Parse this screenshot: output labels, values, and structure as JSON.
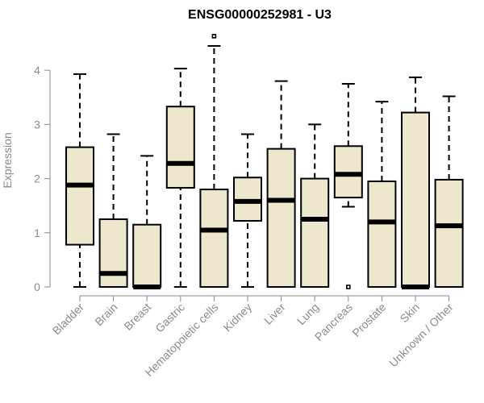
{
  "chart_data": {
    "type": "boxplot",
    "title": "ENSG00000252981 - U3",
    "xlabel": "",
    "ylabel": "Expression",
    "ylim": [
      0,
      4.6
    ],
    "yticks": [
      0,
      1,
      2,
      3,
      4
    ],
    "grid": false,
    "box_color": "#ede7cd",
    "categories": [
      "Bladder",
      "Brain",
      "Breast",
      "Gastric",
      "Hematopoietic cells",
      "Kidney",
      "Liver",
      "Lung",
      "Pancreas",
      "Prostate",
      "Skin",
      "Unknown / Other"
    ],
    "boxes": [
      {
        "min": 0,
        "q1": 0.78,
        "median": 1.88,
        "q3": 2.58,
        "max": 3.93,
        "outliers": []
      },
      {
        "min": 0,
        "q1": 0,
        "median": 0.25,
        "q3": 1.25,
        "max": 2.82,
        "outliers": []
      },
      {
        "min": 0,
        "q1": 0,
        "median": 0,
        "q3": 1.15,
        "max": 2.42,
        "outliers": []
      },
      {
        "min": 0,
        "q1": 1.83,
        "median": 2.28,
        "q3": 3.33,
        "max": 4.03,
        "outliers": []
      },
      {
        "min": 0,
        "q1": 0,
        "median": 1.05,
        "q3": 1.8,
        "max": 4.45,
        "outliers": [
          4.63
        ]
      },
      {
        "min": 0,
        "q1": 1.22,
        "median": 1.58,
        "q3": 2.02,
        "max": 2.82,
        "outliers": []
      },
      {
        "min": 0,
        "q1": 0,
        "median": 1.6,
        "q3": 2.55,
        "max": 3.8,
        "outliers": []
      },
      {
        "min": 0,
        "q1": 0,
        "median": 1.25,
        "q3": 2.0,
        "max": 3.0,
        "outliers": []
      },
      {
        "min": 1.48,
        "q1": 1.65,
        "median": 2.08,
        "q3": 2.6,
        "max": 3.75,
        "outliers": [
          0
        ]
      },
      {
        "min": 0,
        "q1": 0,
        "median": 1.2,
        "q3": 1.95,
        "max": 3.42,
        "outliers": []
      },
      {
        "min": 0,
        "q1": 0,
        "median": 0,
        "q3": 3.22,
        "max": 3.87,
        "outliers": []
      },
      {
        "min": 0,
        "q1": 0,
        "median": 1.13,
        "q3": 1.98,
        "max": 3.52,
        "outliers": []
      }
    ]
  }
}
